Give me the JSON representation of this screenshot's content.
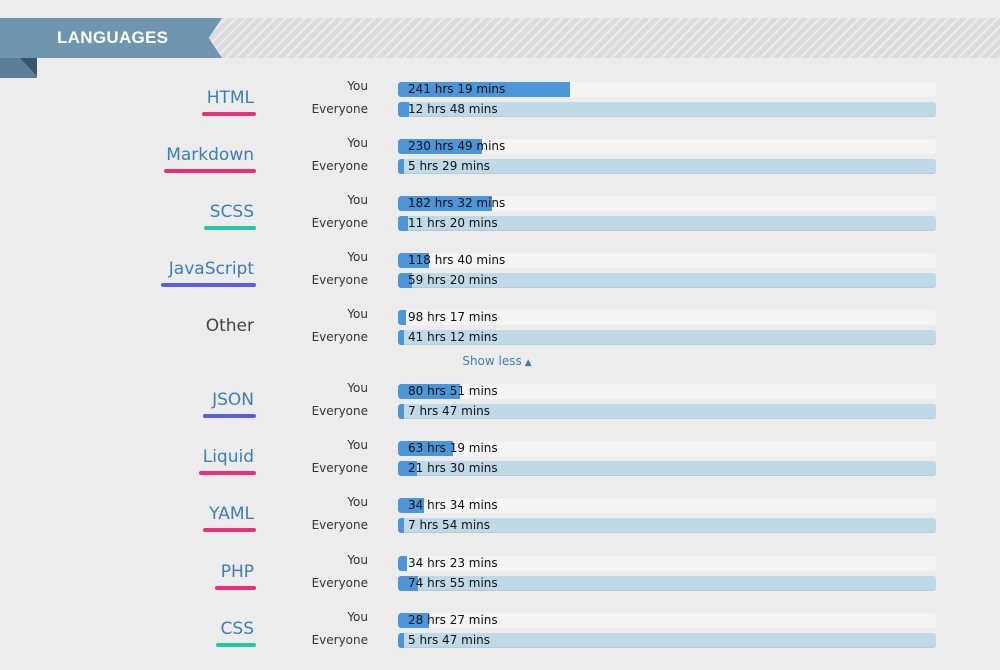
{
  "header": {
    "title": "LANGUAGES"
  },
  "labels": {
    "you": "You",
    "everyone": "Everyone"
  },
  "show_less": {
    "label": "Show less",
    "icon": "chevron-up-icon"
  },
  "colors": {
    "you_bar": "#4a96d9",
    "everyone_track": "#bfd9e7",
    "link": "#3b7fb5"
  },
  "languages": [
    {
      "name": "HTML",
      "link": true,
      "underline": "#ec2d7a",
      "you": {
        "text": "241 hrs 19 mins",
        "fraction": 0.32
      },
      "everyone": {
        "text": "12 hrs 48 mins",
        "fraction": 0.02
      }
    },
    {
      "name": "Markdown",
      "link": true,
      "underline": "#ec2d7a",
      "you": {
        "text": "230 hrs 49 mins",
        "fraction": 0.157
      },
      "everyone": {
        "text": "5 hrs 29 mins",
        "fraction": 0.004
      }
    },
    {
      "name": "SCSS",
      "link": true,
      "underline": "#22c8a8",
      "you": {
        "text": "182 hrs 32 mins",
        "fraction": 0.175
      },
      "everyone": {
        "text": "11 hrs 20 mins",
        "fraction": 0.018
      }
    },
    {
      "name": "JavaScript",
      "link": true,
      "underline": "#5a5ee6",
      "you": {
        "text": "118 hrs 40 mins",
        "fraction": 0.058
      },
      "everyone": {
        "text": "59 hrs 20 mins",
        "fraction": 0.026
      }
    },
    {
      "name": "Other",
      "link": false,
      "underline": null,
      "you": {
        "text": "98 hrs 17 mins",
        "fraction": 0.015
      },
      "everyone": {
        "text": "41 hrs 12 mins",
        "fraction": 0.009
      }
    },
    {
      "name": "JSON",
      "link": true,
      "underline": "#5a5ee6",
      "you": {
        "text": "80 hrs 51 mins",
        "fraction": 0.115
      },
      "everyone": {
        "text": "7 hrs 47 mins",
        "fraction": 0.011
      }
    },
    {
      "name": "Liquid",
      "link": true,
      "underline": "#ec2d7a",
      "you": {
        "text": "63 hrs 19 mins",
        "fraction": 0.102
      },
      "everyone": {
        "text": "21 hrs 30 mins",
        "fraction": 0.035
      }
    },
    {
      "name": "YAML",
      "link": true,
      "underline": "#ec2d7a",
      "you": {
        "text": "34 hrs 34 mins",
        "fraction": 0.048
      },
      "everyone": {
        "text": "7 hrs 54 mins",
        "fraction": 0.011
      }
    },
    {
      "name": "PHP",
      "link": true,
      "underline": "#ec2d7a",
      "you": {
        "text": "34 hrs 23 mins",
        "fraction": 0.017
      },
      "everyone": {
        "text": "74 hrs 55 mins",
        "fraction": 0.037
      }
    },
    {
      "name": "CSS",
      "link": true,
      "underline": "#22c8a8",
      "you": {
        "text": "28 hrs 27 mins",
        "fraction": 0.058
      },
      "everyone": {
        "text": "5 hrs 47 mins",
        "fraction": 0.009
      }
    }
  ]
}
